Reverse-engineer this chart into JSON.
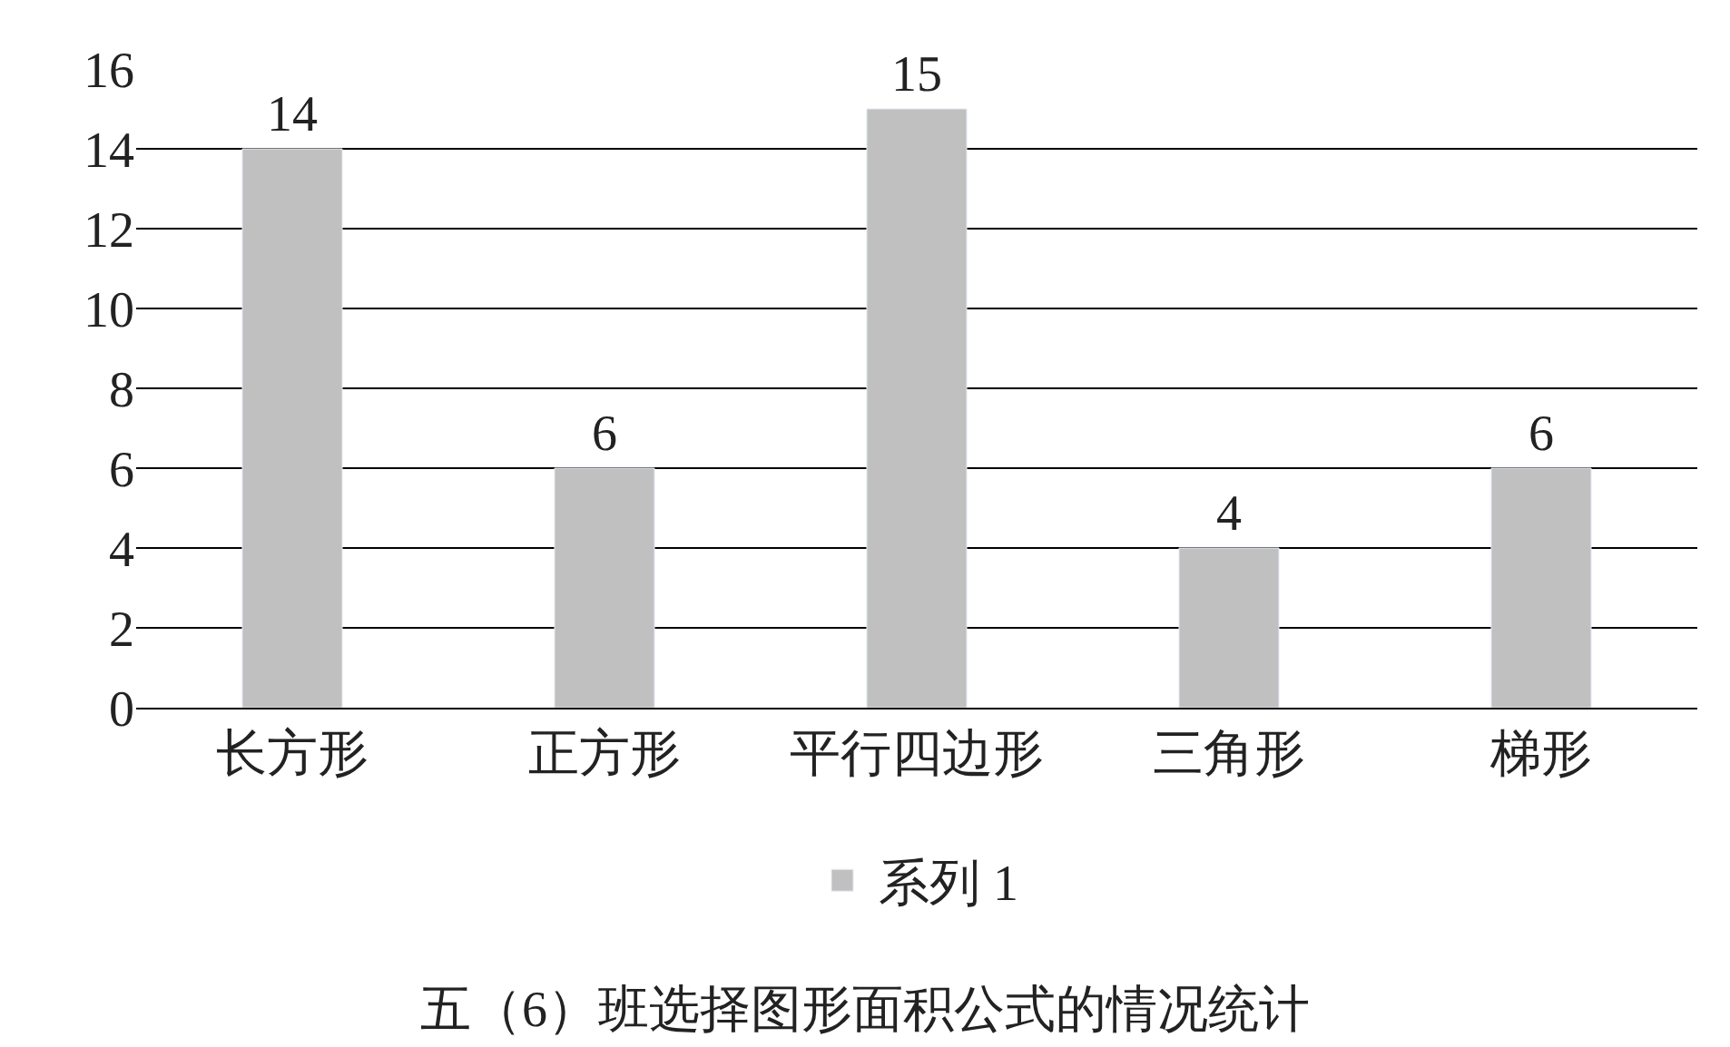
{
  "chart_data": {
    "type": "bar",
    "title": "五（6）班选择图形面积公式的情况统计",
    "categories": [
      "长方形",
      "正方形",
      "平行四边形",
      "三角形",
      "梯形"
    ],
    "series": [
      {
        "name": "系列 1",
        "color": "#c0c0c0",
        "values": [
          14,
          6,
          15,
          4,
          6
        ]
      }
    ],
    "ylim": [
      0,
      16
    ],
    "yticks": [
      0,
      2,
      4,
      6,
      8,
      10,
      12,
      14,
      16
    ],
    "grid": "y",
    "data_labels": true,
    "legend": "bottom"
  }
}
